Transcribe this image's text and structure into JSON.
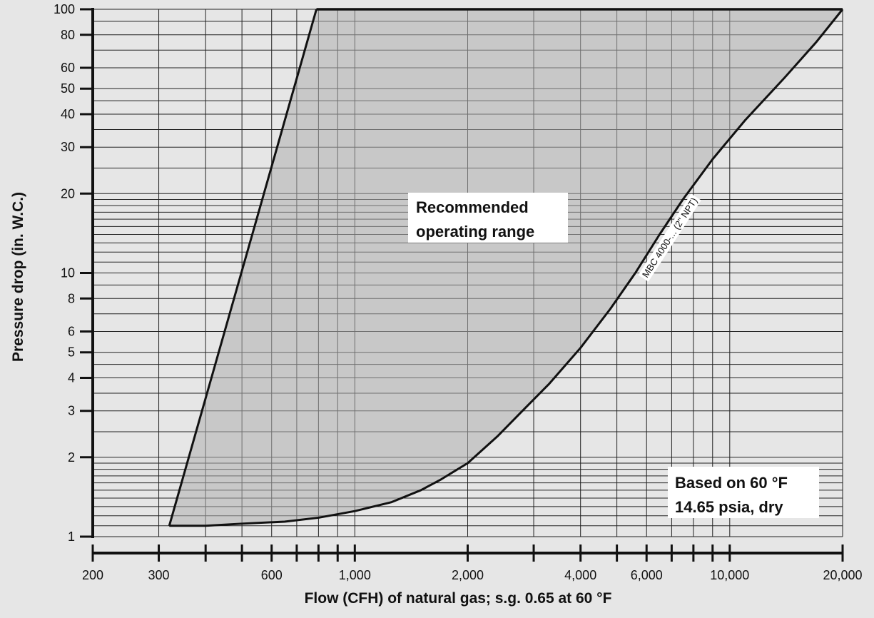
{
  "chart_data": {
    "type": "area",
    "title": "",
    "xlabel": "Flow (CFH) of natural gas; s.g. 0.65 at 60 °F",
    "ylabel": "Pressure drop (in. W.C.)",
    "x_scale": "log",
    "y_scale": "log",
    "xlim": [
      200,
      20000
    ],
    "ylim": [
      1,
      100
    ],
    "grid": true,
    "x_ticks": [
      {
        "value": 200,
        "label": "200"
      },
      {
        "value": 300,
        "label": "300"
      },
      {
        "value": 400,
        "label": ""
      },
      {
        "value": 500,
        "label": ""
      },
      {
        "value": 600,
        "label": "600"
      },
      {
        "value": 700,
        "label": ""
      },
      {
        "value": 800,
        "label": ""
      },
      {
        "value": 900,
        "label": ""
      },
      {
        "value": 1000,
        "label": "1,000"
      },
      {
        "value": 2000,
        "label": "2,000"
      },
      {
        "value": 3000,
        "label": ""
      },
      {
        "value": 4000,
        "label": "4,000"
      },
      {
        "value": 5000,
        "label": ""
      },
      {
        "value": 6000,
        "label": "6,000"
      },
      {
        "value": 7000,
        "label": ""
      },
      {
        "value": 8000,
        "label": ""
      },
      {
        "value": 9000,
        "label": ""
      },
      {
        "value": 10000,
        "label": "10,000"
      },
      {
        "value": 20000,
        "label": "20,000"
      }
    ],
    "y_ticks": [
      {
        "value": 1,
        "label": "1"
      },
      {
        "value": 2,
        "label": "2"
      },
      {
        "value": 3,
        "label": "3"
      },
      {
        "value": 4,
        "label": "4"
      },
      {
        "value": 5,
        "label": "5"
      },
      {
        "value": 6,
        "label": "6"
      },
      {
        "value": 8,
        "label": "8"
      },
      {
        "value": 10,
        "label": "10"
      },
      {
        "value": 20,
        "label": "20"
      },
      {
        "value": 30,
        "label": "30"
      },
      {
        "value": 40,
        "label": "40"
      },
      {
        "value": 50,
        "label": "50"
      },
      {
        "value": 60,
        "label": "60"
      },
      {
        "value": 80,
        "label": "80"
      },
      {
        "value": 100,
        "label": "100"
      }
    ],
    "series": [
      {
        "name": "MBC 4000-... (2\" NPT)",
        "x": [
          20000,
          17000,
          14000,
          11000,
          9000,
          7500,
          6500,
          5600,
          4800,
          4000,
          3300,
          2800,
          2400,
          2000,
          1700,
          1500,
          1250,
          1000,
          800,
          650,
          500,
          400,
          320
        ],
        "y": [
          100,
          75,
          55,
          38,
          27,
          19,
          14,
          10,
          7.3,
          5.2,
          3.8,
          3.0,
          2.4,
          1.9,
          1.65,
          1.5,
          1.35,
          1.25,
          1.18,
          1.14,
          1.12,
          1.1,
          1.1
        ]
      }
    ],
    "range_boundary": {
      "x": [
        320,
        790,
        20000
      ],
      "y": [
        1.1,
        100,
        100
      ]
    },
    "annotations": {
      "range_label": [
        "Recommended",
        "operating range"
      ],
      "conditions": [
        "Based on 60 °F",
        "14.65 psia, dry"
      ]
    }
  }
}
